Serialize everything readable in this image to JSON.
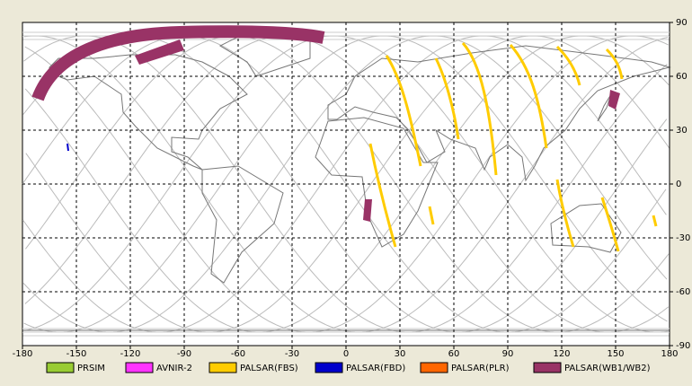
{
  "map": {
    "xlim": [
      -180,
      180
    ],
    "ylim": [
      -90,
      90
    ],
    "xticks": [
      -180,
      -150,
      -120,
      -90,
      -60,
      -30,
      0,
      30,
      60,
      90,
      120,
      150,
      180
    ],
    "yticks": [
      90,
      60,
      30,
      0,
      -30,
      -60,
      -90
    ],
    "grid": true,
    "legend": [
      {
        "name": "PRSIM",
        "color": "#99cc33"
      },
      {
        "name": "AVNIR-2",
        "color": "#ff33ff"
      },
      {
        "name": "PALSAR(FBS)",
        "color": "#ffcc00"
      },
      {
        "name": "PALSAR(FBD)",
        "color": "#0000cc"
      },
      {
        "name": "PALSAR(PLR)",
        "color": "#ff6600"
      },
      {
        "name": "PALSAR(WB1/WB2)",
        "color": "#993366"
      }
    ]
  }
}
